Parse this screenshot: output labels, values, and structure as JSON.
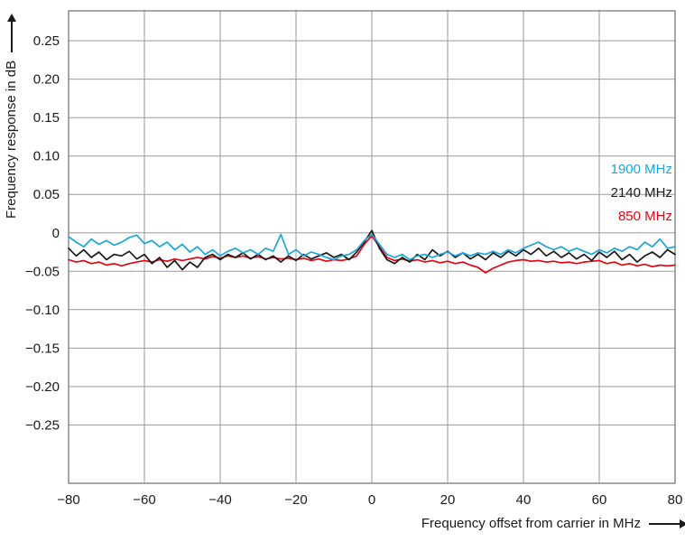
{
  "figure": {
    "ylabel": "Frequency response in dB",
    "xlabel": "Frequency offset from carrier in MHz"
  },
  "legend": [
    {
      "label": "1900 MHz",
      "color": "#1ca6d9"
    },
    {
      "label": "2140 MHz",
      "color": "#1a1a1a"
    },
    {
      "label": "850 MHz",
      "color": "#e30613"
    }
  ],
  "chart_data": {
    "type": "line",
    "title": "",
    "xlabel": "Frequency offset from carrier in MHz",
    "ylabel": "Frequency response in dB",
    "grid": true,
    "legend_position": "inside-right",
    "xlim": [
      -80,
      80
    ],
    "ylim": [
      -0.326,
      0.289
    ],
    "x_ticks": [
      -80,
      -60,
      -40,
      -20,
      0,
      20,
      40,
      60,
      80
    ],
    "x_tick_labels": [
      "−80",
      "−60",
      "−40",
      "−20",
      "0",
      "20",
      "40",
      "60",
      "80"
    ],
    "y_ticks": [
      0.25,
      0.2,
      0.15,
      0.1,
      0.05,
      0,
      -0.05,
      -0.1,
      -0.15,
      -0.2,
      -0.25
    ],
    "y_tick_labels": [
      "0.25",
      "0.20",
      "0.15",
      "0.10",
      "0.05",
      "0",
      "−0.05",
      "−0.10",
      "−0.15",
      "−0.20",
      "−0.25"
    ],
    "x": [
      -80,
      -78,
      -76,
      -74,
      -72,
      -70,
      -68,
      -66,
      -64,
      -62,
      -60,
      -58,
      -56,
      -54,
      -52,
      -50,
      -48,
      -46,
      -44,
      -42,
      -40,
      -38,
      -36,
      -34,
      -32,
      -30,
      -28,
      -26,
      -24,
      -22,
      -20,
      -18,
      -16,
      -14,
      -12,
      -10,
      -8,
      -6,
      -4,
      -2,
      0,
      2,
      4,
      6,
      8,
      10,
      12,
      14,
      16,
      18,
      20,
      22,
      24,
      26,
      28,
      30,
      32,
      34,
      36,
      38,
      40,
      42,
      44,
      46,
      48,
      50,
      52,
      54,
      56,
      58,
      60,
      62,
      64,
      66,
      68,
      70,
      72,
      74,
      76,
      78,
      80
    ],
    "series": [
      {
        "name": "1900 MHz",
        "color": "#1ca6d9",
        "values": [
          -0.005,
          -0.012,
          -0.018,
          -0.008,
          -0.015,
          -0.01,
          -0.016,
          -0.012,
          -0.006,
          -0.003,
          -0.014,
          -0.01,
          -0.018,
          -0.012,
          -0.022,
          -0.015,
          -0.025,
          -0.018,
          -0.028,
          -0.022,
          -0.03,
          -0.024,
          -0.02,
          -0.026,
          -0.022,
          -0.028,
          -0.02,
          -0.024,
          -0.002,
          -0.028,
          -0.022,
          -0.03,
          -0.025,
          -0.028,
          -0.032,
          -0.035,
          -0.03,
          -0.028,
          -0.022,
          -0.01,
          -0.002,
          -0.015,
          -0.028,
          -0.032,
          -0.028,
          -0.035,
          -0.03,
          -0.028,
          -0.032,
          -0.028,
          -0.025,
          -0.03,
          -0.026,
          -0.03,
          -0.026,
          -0.028,
          -0.024,
          -0.028,
          -0.022,
          -0.026,
          -0.02,
          -0.016,
          -0.012,
          -0.018,
          -0.022,
          -0.018,
          -0.024,
          -0.02,
          -0.024,
          -0.028,
          -0.022,
          -0.026,
          -0.02,
          -0.024,
          -0.018,
          -0.022,
          -0.012,
          -0.018,
          -0.008,
          -0.02,
          -0.018
        ]
      },
      {
        "name": "2140 MHz",
        "color": "#1a1a1a",
        "values": [
          -0.02,
          -0.03,
          -0.022,
          -0.032,
          -0.025,
          -0.035,
          -0.028,
          -0.03,
          -0.024,
          -0.034,
          -0.028,
          -0.04,
          -0.032,
          -0.045,
          -0.036,
          -0.048,
          -0.038,
          -0.045,
          -0.032,
          -0.028,
          -0.035,
          -0.028,
          -0.032,
          -0.026,
          -0.034,
          -0.028,
          -0.035,
          -0.03,
          -0.038,
          -0.03,
          -0.036,
          -0.028,
          -0.034,
          -0.03,
          -0.026,
          -0.032,
          -0.028,
          -0.035,
          -0.025,
          -0.012,
          0.003,
          -0.02,
          -0.035,
          -0.04,
          -0.032,
          -0.038,
          -0.028,
          -0.035,
          -0.022,
          -0.03,
          -0.024,
          -0.032,
          -0.026,
          -0.034,
          -0.028,
          -0.035,
          -0.026,
          -0.032,
          -0.024,
          -0.03,
          -0.022,
          -0.028,
          -0.02,
          -0.03,
          -0.024,
          -0.032,
          -0.026,
          -0.034,
          -0.028,
          -0.036,
          -0.025,
          -0.032,
          -0.024,
          -0.035,
          -0.028,
          -0.038,
          -0.03,
          -0.025,
          -0.032,
          -0.022,
          -0.028
        ]
      },
      {
        "name": "850 MHz",
        "color": "#e30613",
        "values": [
          -0.035,
          -0.038,
          -0.036,
          -0.04,
          -0.038,
          -0.042,
          -0.04,
          -0.043,
          -0.04,
          -0.038,
          -0.036,
          -0.038,
          -0.035,
          -0.037,
          -0.034,
          -0.036,
          -0.034,
          -0.032,
          -0.034,
          -0.031,
          -0.033,
          -0.03,
          -0.032,
          -0.03,
          -0.033,
          -0.031,
          -0.034,
          -0.032,
          -0.034,
          -0.033,
          -0.035,
          -0.033,
          -0.036,
          -0.034,
          -0.037,
          -0.035,
          -0.036,
          -0.034,
          -0.03,
          -0.015,
          -0.004,
          -0.018,
          -0.032,
          -0.036,
          -0.034,
          -0.037,
          -0.035,
          -0.038,
          -0.036,
          -0.039,
          -0.037,
          -0.04,
          -0.038,
          -0.042,
          -0.045,
          -0.052,
          -0.046,
          -0.042,
          -0.038,
          -0.036,
          -0.035,
          -0.037,
          -0.036,
          -0.038,
          -0.037,
          -0.039,
          -0.038,
          -0.04,
          -0.038,
          -0.037,
          -0.036,
          -0.04,
          -0.038,
          -0.042,
          -0.04,
          -0.043,
          -0.041,
          -0.044,
          -0.042,
          -0.043,
          -0.042
        ]
      }
    ]
  }
}
